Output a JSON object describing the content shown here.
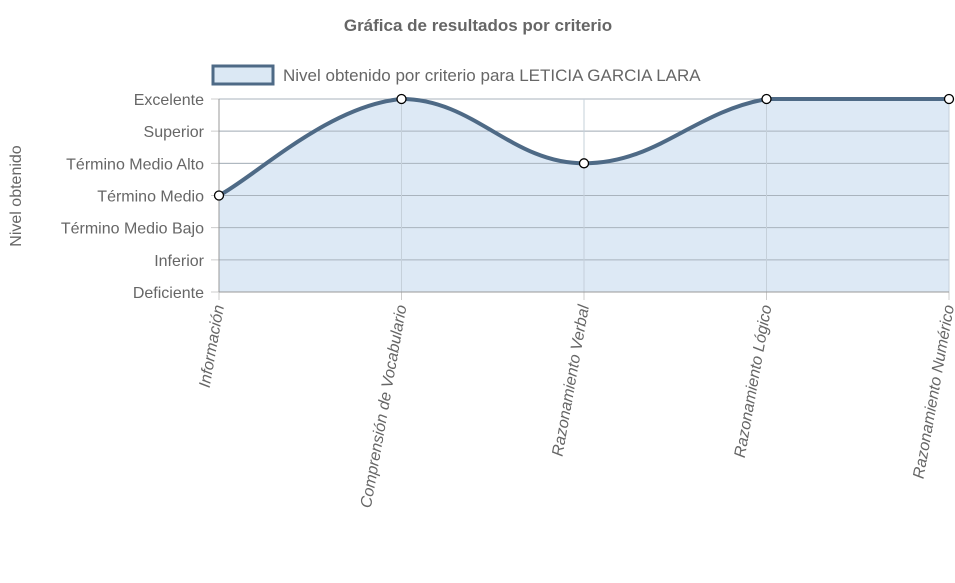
{
  "chart_data": {
    "type": "line",
    "title": "Gráfica de resultados por criterio",
    "ylabel": "Nivel obtenido",
    "xlabel": "",
    "categories": [
      "Información",
      "Comprensión de Vocabulario",
      "Razonamiento Verbal",
      "Razonamiento Lógico",
      "Razonamiento Numérico"
    ],
    "y_levels": [
      "Deficiente",
      "Inferior",
      "Término Medio Bajo",
      "Término Medio",
      "Término Medio Alto",
      "Superior",
      "Excelente"
    ],
    "series": [
      {
        "name": "Nivel obtenido por criterio para LETICIA GARCIA LARA",
        "values": [
          3,
          6,
          4,
          6,
          6
        ],
        "labels": [
          "Término Medio",
          "Excelente",
          "Término Medio Alto",
          "Excelente",
          "Excelente"
        ]
      }
    ],
    "ylim": [
      0,
      6
    ],
    "grid": true,
    "fill": true,
    "legend_position": "top",
    "colors": {
      "line": "#4e6a86",
      "fill": "#dbe8f4",
      "grid": "#cccccc",
      "axis": "#999999",
      "text": "#666666"
    }
  }
}
